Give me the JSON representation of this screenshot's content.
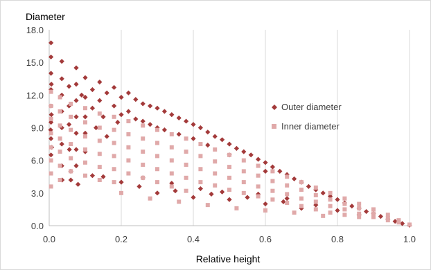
{
  "chart_data": {
    "type": "scatter",
    "title": "",
    "xlabel": "Relative height",
    "ylabel": "Diameter",
    "xlim": [
      0.0,
      1.0
    ],
    "ylim": [
      0.0,
      18.0
    ],
    "x_ticks": [
      "0.0",
      "0.2",
      "0.4",
      "0.6",
      "0.8",
      "1.0"
    ],
    "y_ticks": [
      "0.0",
      "3.0",
      "6.0",
      "9.0",
      "12.0",
      "15.0",
      "18.0"
    ],
    "grid": "vertical",
    "legend_position": "right",
    "series": [
      {
        "name": "Outer diameter",
        "marker": "diamond",
        "color": "#a33a3a",
        "points": [
          [
            0.005,
            16.8
          ],
          [
            0.005,
            15.5
          ],
          [
            0.005,
            14.0
          ],
          [
            0.005,
            12.5
          ],
          [
            0.005,
            11.0
          ],
          [
            0.005,
            9.5
          ],
          [
            0.005,
            8.0
          ],
          [
            0.005,
            6.5
          ],
          [
            0.006,
            13.0
          ],
          [
            0.006,
            10.2
          ],
          [
            0.007,
            7.2
          ],
          [
            0.004,
            8.8
          ],
          [
            0.035,
            15.1
          ],
          [
            0.035,
            13.5
          ],
          [
            0.035,
            12.0
          ],
          [
            0.035,
            10.5
          ],
          [
            0.035,
            9.0
          ],
          [
            0.035,
            7.5
          ],
          [
            0.035,
            5.5
          ],
          [
            0.036,
            4.2
          ],
          [
            0.055,
            12.8
          ],
          [
            0.055,
            11.0
          ],
          [
            0.055,
            9.3
          ],
          [
            0.056,
            7.0
          ],
          [
            0.06,
            5.0
          ],
          [
            0.075,
            14.5
          ],
          [
            0.075,
            13.0
          ],
          [
            0.075,
            11.5
          ],
          [
            0.075,
            10.0
          ],
          [
            0.075,
            8.5
          ],
          [
            0.075,
            7.0
          ],
          [
            0.075,
            5.5
          ],
          [
            0.09,
            12.0
          ],
          [
            0.1,
            13.6
          ],
          [
            0.1,
            11.8
          ],
          [
            0.1,
            10.0
          ],
          [
            0.1,
            8.5
          ],
          [
            0.1,
            6.8
          ],
          [
            0.12,
            12.5
          ],
          [
            0.12,
            10.8
          ],
          [
            0.13,
            9.0
          ],
          [
            0.14,
            13.2
          ],
          [
            0.14,
            11.5
          ],
          [
            0.15,
            10.0
          ],
          [
            0.16,
            8.2
          ],
          [
            0.16,
            12.2
          ],
          [
            0.18,
            12.7
          ],
          [
            0.18,
            11.0
          ],
          [
            0.19,
            9.5
          ],
          [
            0.2,
            11.8
          ],
          [
            0.2,
            10.2
          ],
          [
            0.22,
            12.2
          ],
          [
            0.22,
            10.5
          ],
          [
            0.24,
            11.6
          ],
          [
            0.24,
            9.8
          ],
          [
            0.26,
            11.2
          ],
          [
            0.26,
            9.6
          ],
          [
            0.28,
            11.0
          ],
          [
            0.28,
            9.3
          ],
          [
            0.3,
            10.8
          ],
          [
            0.3,
            9.0
          ],
          [
            0.32,
            10.5
          ],
          [
            0.32,
            8.8
          ],
          [
            0.34,
            10.2
          ],
          [
            0.36,
            9.9
          ],
          [
            0.36,
            8.4
          ],
          [
            0.38,
            9.6
          ],
          [
            0.4,
            9.3
          ],
          [
            0.4,
            8.0
          ],
          [
            0.42,
            9.0
          ],
          [
            0.44,
            8.6
          ],
          [
            0.44,
            7.4
          ],
          [
            0.46,
            8.2
          ],
          [
            0.48,
            7.9
          ],
          [
            0.5,
            7.5
          ],
          [
            0.5,
            6.5
          ],
          [
            0.52,
            7.1
          ],
          [
            0.54,
            6.8
          ],
          [
            0.56,
            6.5
          ],
          [
            0.58,
            6.1
          ],
          [
            0.6,
            5.8
          ],
          [
            0.6,
            5.0
          ],
          [
            0.62,
            5.4
          ],
          [
            0.64,
            5.0
          ],
          [
            0.66,
            4.7
          ],
          [
            0.68,
            4.3
          ],
          [
            0.7,
            4.0
          ],
          [
            0.72,
            3.6
          ],
          [
            0.74,
            3.3
          ],
          [
            0.76,
            3.0
          ],
          [
            0.78,
            2.7
          ],
          [
            0.8,
            2.4
          ],
          [
            0.82,
            2.1
          ],
          [
            0.84,
            1.8
          ],
          [
            0.86,
            1.6
          ],
          [
            0.88,
            1.3
          ],
          [
            0.9,
            1.1
          ],
          [
            0.92,
            0.85
          ],
          [
            0.94,
            0.6
          ],
          [
            0.96,
            0.4
          ],
          [
            0.98,
            0.2
          ],
          [
            1.0,
            0.05
          ],
          [
            0.15,
            4.5
          ],
          [
            0.2,
            4.0
          ],
          [
            0.25,
            3.6
          ],
          [
            0.3,
            3.0
          ],
          [
            0.35,
            3.2
          ],
          [
            0.4,
            2.6
          ],
          [
            0.45,
            2.9
          ],
          [
            0.5,
            2.4
          ],
          [
            0.55,
            2.6
          ],
          [
            0.6,
            2.0
          ],
          [
            0.65,
            2.2
          ],
          [
            0.7,
            1.6
          ],
          [
            0.08,
            3.8
          ],
          [
            0.12,
            4.6
          ],
          [
            0.06,
            4.2
          ],
          [
            0.26,
            4.4
          ],
          [
            0.34,
            3.9
          ],
          [
            0.42,
            3.4
          ],
          [
            0.48,
            3.1
          ],
          [
            0.58,
            2.9
          ],
          [
            0.66,
            2.5
          ],
          [
            0.74,
            1.9
          ],
          [
            0.8,
            1.4
          ],
          [
            0.86,
            1.0
          ]
        ]
      },
      {
        "name": "Inner diameter",
        "marker": "square",
        "color": "#e0a9a9",
        "points": [
          [
            0.005,
            12.3
          ],
          [
            0.005,
            11.0
          ],
          [
            0.005,
            9.8
          ],
          [
            0.005,
            8.5
          ],
          [
            0.005,
            7.2
          ],
          [
            0.005,
            6.0
          ],
          [
            0.005,
            4.8
          ],
          [
            0.005,
            3.6
          ],
          [
            0.03,
            11.8
          ],
          [
            0.03,
            10.5
          ],
          [
            0.03,
            9.2
          ],
          [
            0.03,
            8.0
          ],
          [
            0.03,
            6.8
          ],
          [
            0.03,
            5.5
          ],
          [
            0.03,
            4.2
          ],
          [
            0.06,
            11.2
          ],
          [
            0.06,
            10.0
          ],
          [
            0.06,
            8.8
          ],
          [
            0.06,
            7.5
          ],
          [
            0.06,
            6.2
          ],
          [
            0.06,
            5.0
          ],
          [
            0.1,
            10.8
          ],
          [
            0.1,
            9.5
          ],
          [
            0.1,
            8.2
          ],
          [
            0.1,
            7.0
          ],
          [
            0.1,
            5.8
          ],
          [
            0.1,
            4.6
          ],
          [
            0.14,
            10.3
          ],
          [
            0.14,
            9.0
          ],
          [
            0.14,
            7.8
          ],
          [
            0.14,
            6.6
          ],
          [
            0.14,
            5.4
          ],
          [
            0.14,
            4.2
          ],
          [
            0.18,
            10.0
          ],
          [
            0.18,
            8.8
          ],
          [
            0.18,
            7.6
          ],
          [
            0.18,
            6.4
          ],
          [
            0.18,
            5.2
          ],
          [
            0.18,
            4.0
          ],
          [
            0.22,
            9.6
          ],
          [
            0.22,
            8.4
          ],
          [
            0.22,
            7.2
          ],
          [
            0.22,
            6.0
          ],
          [
            0.22,
            4.8
          ],
          [
            0.26,
            9.2
          ],
          [
            0.26,
            8.0
          ],
          [
            0.26,
            6.8
          ],
          [
            0.26,
            5.6
          ],
          [
            0.26,
            4.4
          ],
          [
            0.3,
            8.8
          ],
          [
            0.3,
            7.6
          ],
          [
            0.3,
            6.4
          ],
          [
            0.3,
            5.2
          ],
          [
            0.3,
            4.0
          ],
          [
            0.34,
            8.4
          ],
          [
            0.34,
            7.2
          ],
          [
            0.34,
            6.0
          ],
          [
            0.34,
            4.8
          ],
          [
            0.34,
            3.6
          ],
          [
            0.38,
            8.0
          ],
          [
            0.38,
            6.8
          ],
          [
            0.38,
            5.6
          ],
          [
            0.38,
            4.4
          ],
          [
            0.38,
            3.2
          ],
          [
            0.42,
            7.5
          ],
          [
            0.42,
            6.4
          ],
          [
            0.42,
            5.2
          ],
          [
            0.42,
            4.0
          ],
          [
            0.46,
            7.0
          ],
          [
            0.46,
            5.9
          ],
          [
            0.46,
            4.8
          ],
          [
            0.46,
            3.7
          ],
          [
            0.5,
            6.5
          ],
          [
            0.5,
            5.4
          ],
          [
            0.5,
            4.4
          ],
          [
            0.5,
            3.3
          ],
          [
            0.54,
            6.0
          ],
          [
            0.54,
            5.0
          ],
          [
            0.54,
            4.0
          ],
          [
            0.54,
            3.0
          ],
          [
            0.58,
            5.5
          ],
          [
            0.58,
            4.6
          ],
          [
            0.58,
            3.6
          ],
          [
            0.58,
            2.7
          ],
          [
            0.62,
            5.0
          ],
          [
            0.62,
            4.1
          ],
          [
            0.62,
            3.2
          ],
          [
            0.62,
            2.4
          ],
          [
            0.66,
            4.5
          ],
          [
            0.66,
            3.7
          ],
          [
            0.66,
            2.9
          ],
          [
            0.66,
            2.1
          ],
          [
            0.7,
            4.0
          ],
          [
            0.7,
            3.3
          ],
          [
            0.7,
            2.5
          ],
          [
            0.7,
            1.8
          ],
          [
            0.74,
            3.5
          ],
          [
            0.74,
            2.8
          ],
          [
            0.74,
            2.2
          ],
          [
            0.74,
            1.5
          ],
          [
            0.78,
            3.0
          ],
          [
            0.78,
            2.4
          ],
          [
            0.78,
            1.8
          ],
          [
            0.78,
            1.2
          ],
          [
            0.82,
            2.5
          ],
          [
            0.82,
            2.0
          ],
          [
            0.82,
            1.5
          ],
          [
            0.82,
            1.0
          ],
          [
            0.86,
            2.0
          ],
          [
            0.86,
            1.6
          ],
          [
            0.86,
            1.1
          ],
          [
            0.86,
            0.8
          ],
          [
            0.9,
            1.5
          ],
          [
            0.9,
            1.1
          ],
          [
            0.9,
            0.8
          ],
          [
            0.94,
            1.0
          ],
          [
            0.94,
            0.7
          ],
          [
            0.94,
            0.5
          ],
          [
            0.97,
            0.5
          ],
          [
            0.97,
            0.3
          ],
          [
            1.0,
            0.1
          ],
          [
            0.2,
            3.0
          ],
          [
            0.28,
            2.5
          ],
          [
            0.36,
            2.2
          ],
          [
            0.44,
            1.9
          ],
          [
            0.52,
            1.6
          ],
          [
            0.6,
            1.4
          ],
          [
            0.68,
            1.2
          ],
          [
            0.76,
            0.9
          ]
        ]
      }
    ]
  }
}
